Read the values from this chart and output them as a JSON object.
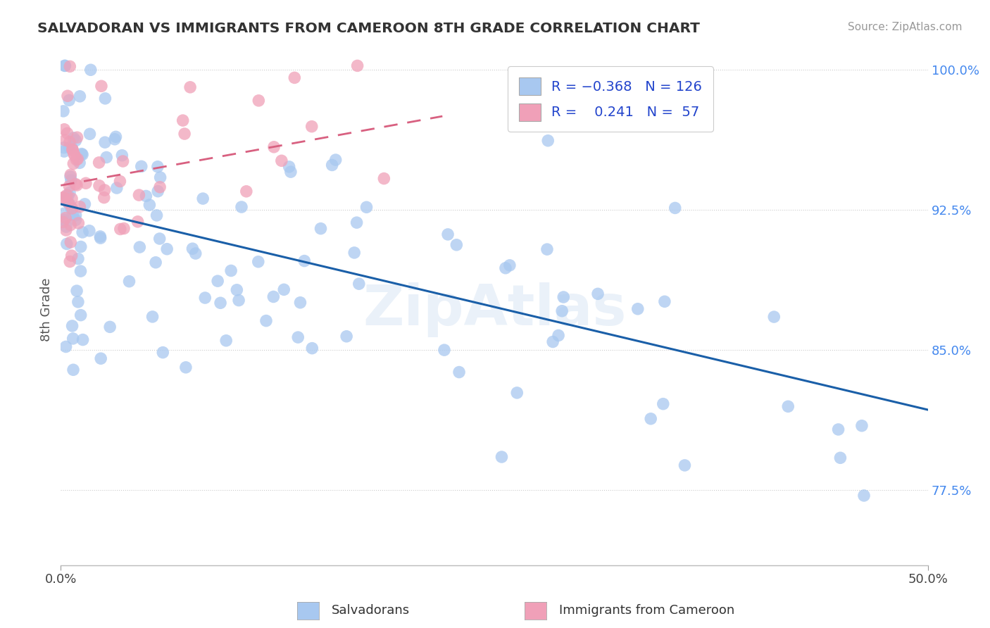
{
  "title": "SALVADORAN VS IMMIGRANTS FROM CAMEROON 8TH GRADE CORRELATION CHART",
  "source_text": "Source: ZipAtlas.com",
  "ylabel": "8th Grade",
  "xlim": [
    0.0,
    0.5
  ],
  "ylim": [
    0.735,
    1.008
  ],
  "blue_R": -0.368,
  "blue_N": 126,
  "pink_R": 0.241,
  "pink_N": 57,
  "blue_color": "#a8c8f0",
  "pink_color": "#f0a0b8",
  "blue_line_color": "#1a5fa8",
  "pink_line_color": "#d86080",
  "ytick_vals": [
    0.775,
    0.85,
    0.925,
    1.0
  ],
  "ytick_labs": [
    "77.5%",
    "85.0%",
    "92.5%",
    "100.0%"
  ],
  "blue_trend_x0": 0.0,
  "blue_trend_y0": 0.928,
  "blue_trend_x1": 0.5,
  "blue_trend_y1": 0.818,
  "pink_trend_x0": 0.0,
  "pink_trend_y0": 0.938,
  "pink_trend_x1": 0.22,
  "pink_trend_y1": 0.975
}
